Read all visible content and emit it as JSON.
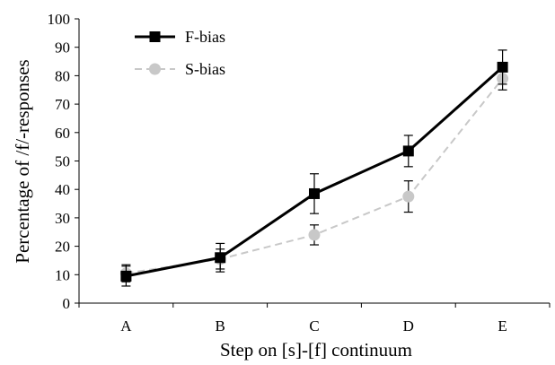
{
  "chart_data": {
    "type": "line",
    "title": "",
    "xlabel": "Step on [s]-[f] continuum",
    "ylabel": "Percentage of /f/-responses",
    "categories": [
      "A",
      "B",
      "C",
      "D",
      "E"
    ],
    "ylim": [
      0,
      100
    ],
    "yticks": [
      0,
      10,
      20,
      30,
      40,
      50,
      60,
      70,
      80,
      90,
      100
    ],
    "grid": false,
    "legend_position": "top-left",
    "series": [
      {
        "name": "F-bias",
        "values": [
          9.5,
          16,
          38.5,
          53.5,
          83
        ],
        "error": [
          3.5,
          5,
          7,
          5.5,
          6
        ],
        "color": "#000000",
        "line_style": "solid",
        "marker": "square"
      },
      {
        "name": "S-bias",
        "values": [
          10.5,
          15.5,
          24,
          37.5,
          79
        ],
        "error": [
          3,
          3.5,
          3.5,
          5.5,
          4
        ],
        "color": "#c8c8c8",
        "line_style": "dashed",
        "marker": "circle"
      }
    ]
  }
}
